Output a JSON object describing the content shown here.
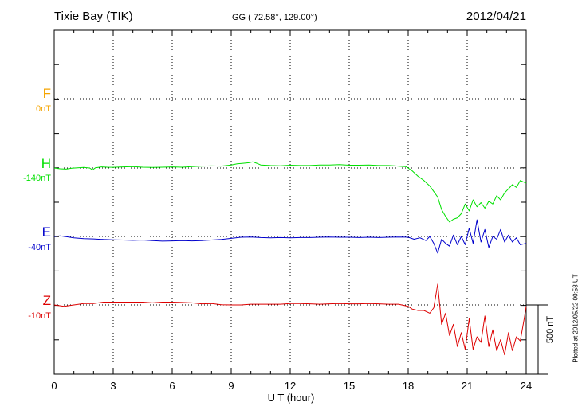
{
  "header": {
    "station": "Tixie Bay (TIK)",
    "coords": "GG ( 72.58°, 129.00°)",
    "date": "2012/04/21"
  },
  "side": {
    "scale_label": "500 nT",
    "plotted_note": "Plotted at 2012/05/22 00:58 UT"
  },
  "chart_data": {
    "type": "line",
    "xlabel": "U T (hour)",
    "xlim": [
      0,
      24
    ],
    "xticks": [
      "0",
      "3",
      "6",
      "9",
      "12",
      "15",
      "18",
      "21",
      "24"
    ],
    "scale_bar_nT": 500,
    "grid": true,
    "series": [
      {
        "name": "F",
        "offset": "0nT",
        "color": "#f5a400",
        "x": [],
        "y": []
      },
      {
        "name": "H",
        "offset": "-140nT",
        "color": "#00e000",
        "x": [
          0,
          0.3,
          0.6,
          0.9,
          1.2,
          1.5,
          1.8,
          1.95,
          2.1,
          2.4,
          2.7,
          3,
          3.5,
          4,
          4.5,
          5,
          5.5,
          6,
          6.5,
          7,
          7.5,
          8,
          8.5,
          9,
          9.3,
          9.6,
          9.9,
          10.1,
          10.3,
          10.5,
          11,
          11.5,
          12,
          12.5,
          13,
          13.5,
          14,
          14.5,
          15,
          15.5,
          16,
          16.5,
          17,
          17.3,
          17.6,
          17.9,
          18.2,
          18.5,
          18.8,
          19.1,
          19.3,
          19.5,
          19.7,
          19.9,
          20.1,
          20.3,
          20.5,
          20.7,
          20.9,
          21.1,
          21.3,
          21.5,
          21.7,
          21.9,
          22.1,
          22.3,
          22.5,
          22.7,
          22.9,
          23.1,
          23.3,
          23.5,
          23.7,
          24
        ],
        "y": [
          0,
          -6,
          -8,
          -2,
          2,
          4,
          0,
          -14,
          2,
          8,
          6,
          5,
          8,
          10,
          6,
          4,
          6,
          8,
          6,
          10,
          14,
          15,
          14,
          22,
          30,
          34,
          38,
          44,
          34,
          22,
          18,
          16,
          20,
          18,
          18,
          22,
          22,
          24,
          20,
          20,
          22,
          18,
          18,
          16,
          12,
          10,
          -20,
          -60,
          -90,
          -130,
          -170,
          -210,
          -300,
          -350,
          -390,
          -370,
          -360,
          -330,
          -260,
          -310,
          -230,
          -280,
          -250,
          -290,
          -240,
          -260,
          -200,
          -230,
          -180,
          -150,
          -120,
          -140,
          -90,
          -110
        ]
      },
      {
        "name": "E",
        "offset": "-40nT",
        "color": "#0000cc",
        "x": [
          0,
          0.3,
          0.6,
          1,
          1.5,
          2,
          2.5,
          3,
          3.5,
          4,
          4.5,
          5,
          5.5,
          6,
          6.5,
          7,
          7.5,
          8,
          8.5,
          9,
          9.5,
          10,
          10.5,
          11,
          11.5,
          12,
          12.5,
          13,
          13.5,
          14,
          14.5,
          15,
          15.5,
          16,
          16.5,
          17,
          17.5,
          18,
          18.3,
          18.6,
          18.9,
          19.1,
          19.3,
          19.5,
          19.7,
          19.9,
          20.1,
          20.3,
          20.5,
          20.7,
          20.9,
          21.1,
          21.3,
          21.5,
          21.7,
          21.9,
          22.1,
          22.3,
          22.5,
          22.7,
          22.9,
          23.1,
          23.3,
          23.5,
          23.7,
          24
        ],
        "y": [
          0,
          4,
          -2,
          -10,
          -16,
          -18,
          -22,
          -24,
          -26,
          -28,
          -26,
          -30,
          -34,
          -32,
          -30,
          -32,
          -30,
          -26,
          -22,
          -14,
          -6,
          -4,
          -8,
          -10,
          -8,
          -10,
          -8,
          -8,
          -6,
          -4,
          -6,
          -6,
          -8,
          -6,
          -8,
          -6,
          -4,
          -6,
          -20,
          -10,
          -30,
          0,
          -50,
          -120,
          -20,
          -50,
          -70,
          10,
          -60,
          0,
          -60,
          60,
          -50,
          120,
          -40,
          50,
          -80,
          0,
          -20,
          50,
          -40,
          10,
          -40,
          -10,
          -60,
          -50
        ]
      },
      {
        "name": "Z",
        "offset": "-10nT",
        "color": "#dd0000",
        "x": [
          0,
          0.5,
          1,
          1.5,
          2,
          2.5,
          3,
          3.5,
          4,
          4.5,
          5,
          5.5,
          6,
          6.5,
          7,
          7.5,
          8,
          8.5,
          9,
          9.5,
          10,
          10.5,
          11,
          11.5,
          12,
          12.5,
          13,
          13.5,
          14,
          14.5,
          15,
          15.5,
          16,
          16.5,
          17,
          17.5,
          18,
          18.2,
          18.5,
          18.8,
          19.1,
          19.3,
          19.5,
          19.7,
          19.9,
          20.1,
          20.3,
          20.5,
          20.7,
          20.9,
          21.1,
          21.3,
          21.5,
          21.7,
          21.9,
          22.1,
          22.3,
          22.5,
          22.7,
          22.9,
          23.1,
          23.3,
          23.5,
          23.7,
          23.9,
          24
        ],
        "y": [
          0,
          -10,
          0,
          10,
          10,
          20,
          20,
          20,
          20,
          20,
          15,
          20,
          20,
          18,
          15,
          8,
          10,
          2,
          0,
          0,
          5,
          5,
          5,
          5,
          10,
          10,
          8,
          5,
          8,
          10,
          8,
          8,
          10,
          8,
          5,
          5,
          -10,
          -30,
          -40,
          -40,
          -60,
          -20,
          150,
          -140,
          -60,
          -220,
          -140,
          -300,
          -200,
          -320,
          -100,
          -320,
          -230,
          -270,
          -80,
          -300,
          -180,
          -330,
          -250,
          -360,
          -200,
          -330,
          -230,
          -260,
          -100,
          -10
        ]
      }
    ]
  }
}
